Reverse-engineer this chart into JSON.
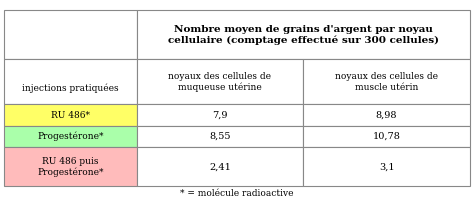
{
  "title": "Nombre moyen de grains d'argent par noyau\ncellulaire (comptage effectué sur 300 cellules)",
  "col1_header": "noyaux des cellules de\nmuqueuse utérine",
  "col2_header": "noyaux des cellules de\nmuscle utérin",
  "row_header": "injections pratiquées",
  "rows": [
    {
      "label": "RU 486*",
      "val1": "7,9",
      "val2": "8,98",
      "bg": "#ffff66"
    },
    {
      "label": "Progestérone*",
      "val1": "8,55",
      "val2": "10,78",
      "bg": "#aaffaa"
    },
    {
      "label": "RU 486 puis\nProgestérone*",
      "val1": "2,41",
      "val2": "3,1",
      "bg": "#ffbbbb"
    }
  ],
  "footnote": "* = molécule radioactive",
  "border_color": "#888888",
  "figsize": [
    4.74,
    2.06
  ],
  "dpi": 100
}
